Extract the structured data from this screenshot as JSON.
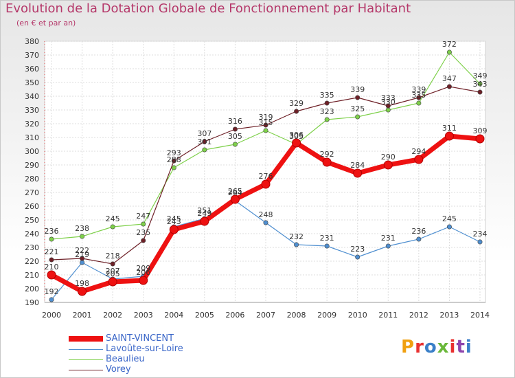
{
  "header": {
    "title": "Evolution de la Dotation Globale de Fonctionnement par Habitant",
    "subtitle": "(en € et par an)"
  },
  "brand": {
    "text": "Proxiti",
    "colors": [
      "#f0a010",
      "#e83030",
      "#3a7fc8",
      "#6ab83a",
      "#e83030",
      "#8e44ad",
      "#3a7fc8"
    ]
  },
  "chart_data": {
    "type": "line",
    "title": "Evolution de la Dotation Globale de Fonctionnement par Habitant",
    "subtitle": "(en € et par an)",
    "categories": [
      "2000",
      "2001",
      "2002",
      "2003",
      "2004",
      "2005",
      "2006",
      "2007",
      "2008",
      "2009",
      "2010",
      "2011",
      "2012",
      "2013",
      "2014"
    ],
    "ylim": [
      190,
      380
    ],
    "yticks": [
      190,
      200,
      210,
      220,
      230,
      240,
      250,
      260,
      270,
      280,
      290,
      300,
      310,
      320,
      330,
      340,
      350,
      360,
      370,
      380
    ],
    "grid": true,
    "legend_position": "bottom-left",
    "series": [
      {
        "name": "SAINT-VINCENT",
        "color": "#ee1111",
        "values": [
          210,
          198,
          205,
          206,
          243,
          249,
          265,
          276,
          306,
          292,
          284,
          290,
          294,
          311,
          309
        ]
      },
      {
        "name": "Lavoûte-sur-Loire",
        "color": "#4f8fd0",
        "values": [
          192,
          219,
          207,
          209,
          245,
          251,
          264,
          248,
          232,
          231,
          223,
          231,
          236,
          245,
          234
        ]
      },
      {
        "name": "Beaulieu",
        "color": "#7ed04a",
        "values": [
          236,
          238,
          245,
          247,
          288,
          301,
          305,
          315,
          305,
          323,
          325,
          330,
          335,
          372,
          349
        ]
      },
      {
        "name": "Vorey",
        "color": "#6e2027",
        "values": [
          221,
          222,
          218,
          235,
          293,
          307,
          316,
          319,
          329,
          335,
          339,
          333,
          339,
          347,
          343
        ]
      }
    ]
  }
}
